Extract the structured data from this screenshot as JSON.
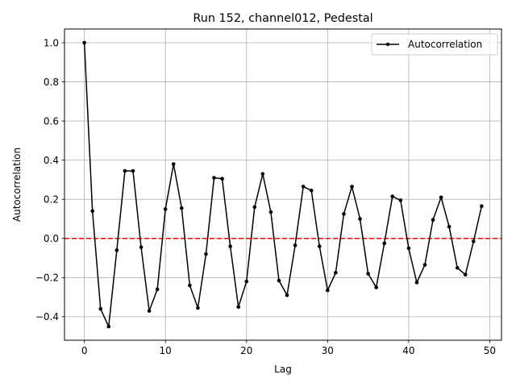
{
  "chart_data": {
    "type": "line",
    "title": "Run 152, channel012, Pedestal",
    "xlabel": "Lag",
    "ylabel": "Autocorrelation",
    "xlim": [
      -2.45,
      51.45
    ],
    "ylim": [
      -0.52,
      1.07
    ],
    "xticks": [
      0,
      10,
      20,
      30,
      40,
      50
    ],
    "yticks": [
      -0.4,
      -0.2,
      0.0,
      0.2,
      0.4,
      0.6,
      0.8,
      1.0
    ],
    "xtick_labels": [
      "0",
      "10",
      "20",
      "30",
      "40",
      "50"
    ],
    "ytick_labels": [
      "−0.4",
      "−0.2",
      "0.0",
      "0.2",
      "0.4",
      "0.6",
      "0.8",
      "1.0"
    ],
    "grid": true,
    "legend_position": "top-right",
    "series": [
      {
        "name": "Autocorrelation",
        "color": "#000000",
        "marker": "dot",
        "x": [
          0,
          1,
          2,
          3,
          4,
          5,
          6,
          7,
          8,
          9,
          10,
          11,
          12,
          13,
          14,
          15,
          16,
          17,
          18,
          19,
          20,
          21,
          22,
          23,
          24,
          25,
          26,
          27,
          28,
          29,
          30,
          31,
          32,
          33,
          34,
          35,
          36,
          37,
          38,
          39,
          40,
          41,
          42,
          43,
          44,
          45,
          46,
          47,
          48,
          49
        ],
        "values": [
          1.0,
          0.14,
          -0.36,
          -0.45,
          -0.06,
          0.345,
          0.345,
          -0.045,
          -0.37,
          -0.26,
          0.15,
          0.38,
          0.155,
          -0.24,
          -0.355,
          -0.08,
          0.31,
          0.305,
          -0.04,
          -0.35,
          -0.22,
          0.16,
          0.33,
          0.135,
          -0.215,
          -0.29,
          -0.035,
          0.265,
          0.245,
          -0.04,
          -0.265,
          -0.175,
          0.125,
          0.265,
          0.1,
          -0.18,
          -0.25,
          -0.025,
          0.215,
          0.195,
          -0.05,
          -0.225,
          -0.135,
          0.095,
          0.21,
          0.06,
          -0.15,
          -0.185,
          -0.015,
          0.165
        ]
      }
    ],
    "reference_line": {
      "y": 0.0,
      "color": "#ff0000",
      "style": "dashed"
    }
  }
}
